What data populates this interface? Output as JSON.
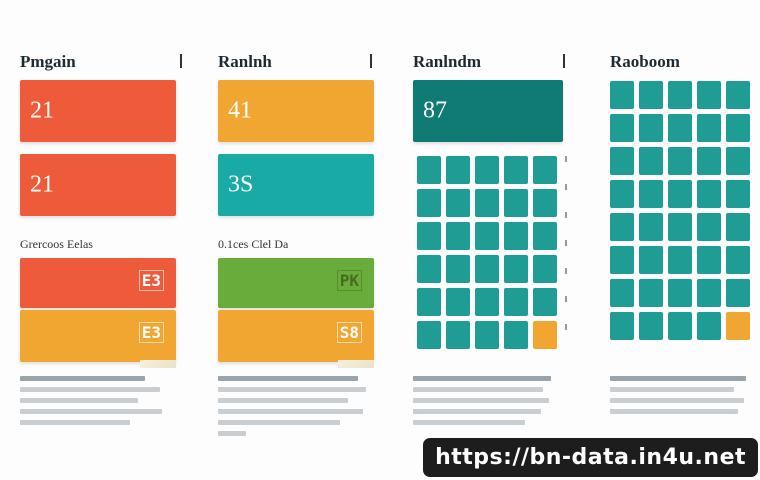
{
  "columns": [
    {
      "title": "Pmgain",
      "cards": [
        {
          "number": "21",
          "color": "#ee5b3a"
        },
        {
          "number": "21",
          "color": "#ee5b3a"
        }
      ],
      "subtitle": "Grercoos Eelas",
      "lower_cards": [
        {
          "tag": "E3",
          "color": "#ee5b3a"
        },
        {
          "tag": "E3",
          "color": "#f2a632"
        }
      ]
    },
    {
      "title": "Ranlnh",
      "cards": [
        {
          "number": "41",
          "color": "#f2a632"
        },
        {
          "number": "3S",
          "color": "#19aaa5"
        }
      ],
      "subtitle": "0.1ces Clel Da",
      "lower_cards": [
        {
          "tag": "PK",
          "color": "#6aac3c"
        },
        {
          "tag": "S8",
          "color": "#f2a632"
        }
      ]
    },
    {
      "title": "Ranlndm",
      "cards": [
        {
          "number": "87",
          "color": "#107a74"
        }
      ],
      "grid": {
        "rows": 6,
        "cols": 5,
        "highlight": [
          [
            5,
            4
          ]
        ],
        "color": "#1f9c93",
        "highlight_color": "#f2a632"
      }
    },
    {
      "title": "Raoboom",
      "grid": {
        "rows": 8,
        "cols": 5,
        "highlight": [
          [
            7,
            4
          ]
        ],
        "color": "#1f9c93",
        "highlight_color": "#f2a632"
      }
    }
  ],
  "watermark": "https://bn-data.in4u.net"
}
